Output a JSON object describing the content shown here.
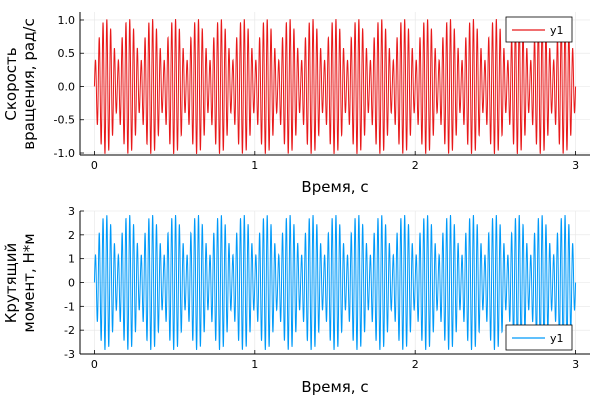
{
  "chart_data": [
    {
      "type": "line",
      "xlabel": "Время, с",
      "ylabel": [
        "Скорость",
        "вращения, рад/с"
      ],
      "xlim": [
        -0.09,
        3.09
      ],
      "ylim": [
        -1.03,
        1.12
      ],
      "xticks": [
        0,
        1,
        2,
        3
      ],
      "xtick_labels": [
        "0",
        "1",
        "2",
        "3"
      ],
      "yticks": [
        -1.0,
        -0.5,
        0.0,
        0.5,
        1.0
      ],
      "ytick_labels": [
        "-1.0",
        "-0.5",
        "0.0",
        "0.5",
        "1.0"
      ],
      "grid": true,
      "legend": "top-right",
      "series": [
        {
          "name": "y1",
          "color": "#e8191a",
          "signal": {
            "t_start": 0,
            "t_end": 3,
            "carrier_hz": 42,
            "envelope_hz": 7,
            "amp_min": 0.3,
            "amp_max": 1.02
          }
        }
      ]
    },
    {
      "type": "line",
      "xlabel": "Время, с",
      "ylabel": [
        "Крутящий",
        "момент, Н*м"
      ],
      "xlim": [
        -0.09,
        3.09
      ],
      "ylim": [
        -3,
        3
      ],
      "xticks": [
        0,
        1,
        2,
        3
      ],
      "xtick_labels": [
        "0",
        "1",
        "2",
        "3"
      ],
      "yticks": [
        -3,
        -2,
        -1,
        0,
        1,
        2,
        3
      ],
      "ytick_labels": [
        "-3",
        "-2",
        "-1",
        "0",
        "1",
        "2",
        "3"
      ],
      "grid": true,
      "legend": "bottom-right",
      "series": [
        {
          "name": "y1",
          "color": "#009af9",
          "signal": {
            "t_start": 0,
            "t_end": 3,
            "carrier_hz": 42,
            "envelope_hz": 7,
            "amp_min": 0.9,
            "amp_max": 2.85
          }
        }
      ]
    }
  ]
}
